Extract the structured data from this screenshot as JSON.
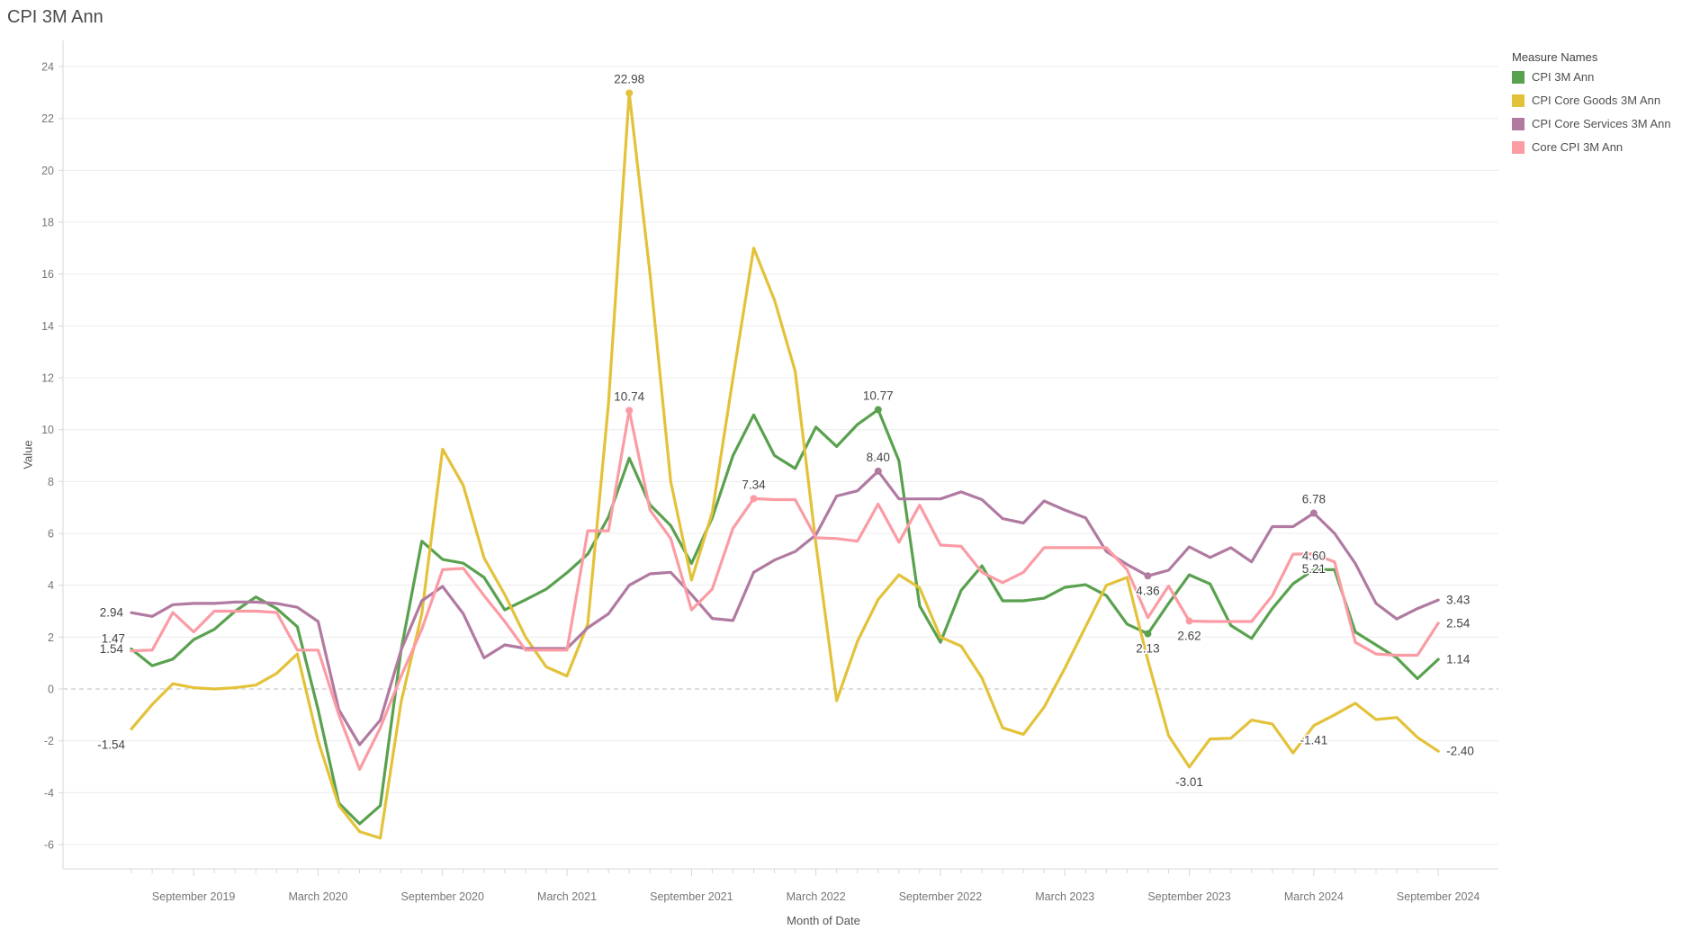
{
  "title": "CPI 3M Ann",
  "y_axis": {
    "title": "Value",
    "min": -6,
    "max": 24,
    "tick_step": 2,
    "ticks": [
      24,
      22,
      20,
      18,
      16,
      14,
      12,
      10,
      8,
      6,
      4,
      2,
      0,
      -2,
      -4,
      -6
    ]
  },
  "x_axis": {
    "title": "Month of Date",
    "tick_labels": [
      {
        "index": 3,
        "label": "September 2019"
      },
      {
        "index": 9,
        "label": "March 2020"
      },
      {
        "index": 15,
        "label": "September 2020"
      },
      {
        "index": 21,
        "label": "March 2021"
      },
      {
        "index": 27,
        "label": "September 2021"
      },
      {
        "index": 33,
        "label": "March 2022"
      },
      {
        "index": 39,
        "label": "September 2022"
      },
      {
        "index": 45,
        "label": "March 2023"
      },
      {
        "index": 51,
        "label": "September 2023"
      },
      {
        "index": 57,
        "label": "March 2024"
      },
      {
        "index": 63,
        "label": "September 2024"
      }
    ]
  },
  "legend": {
    "title": "Measure Names",
    "items": [
      {
        "label": "CPI 3M Ann",
        "color": "#59a14f"
      },
      {
        "label": "CPI Core Goods 3M Ann",
        "color": "#e3c23a"
      },
      {
        "label": "CPI Core Services 3M Ann",
        "color": "#b07aa1"
      },
      {
        "label": "Core CPI 3M Ann",
        "color": "#fb9ca5"
      }
    ]
  },
  "style": {
    "grid_color": "#ececec",
    "zero_line_color": "#bcbcbc",
    "axis_line_color": "#d7d7d7",
    "tick_text_color": "#767676",
    "label_text_color": "#444444",
    "line_width": 3.2
  },
  "chart_data": {
    "type": "line",
    "xlabel": "Month of Date",
    "ylabel": "Value",
    "ylim": [
      -6,
      24
    ],
    "grid": "horizontal",
    "legend_position": "top-right",
    "x": [
      "2019-06",
      "2019-07",
      "2019-08",
      "2019-09",
      "2019-10",
      "2019-11",
      "2019-12",
      "2020-01",
      "2020-02",
      "2020-03",
      "2020-04",
      "2020-05",
      "2020-06",
      "2020-07",
      "2020-08",
      "2020-09",
      "2020-10",
      "2020-11",
      "2020-12",
      "2021-01",
      "2021-02",
      "2021-03",
      "2021-04",
      "2021-05",
      "2021-06",
      "2021-07",
      "2021-08",
      "2021-09",
      "2021-10",
      "2021-11",
      "2021-12",
      "2022-01",
      "2022-02",
      "2022-03",
      "2022-04",
      "2022-05",
      "2022-06",
      "2022-07",
      "2022-08",
      "2022-09",
      "2022-10",
      "2022-11",
      "2022-12",
      "2023-01",
      "2023-02",
      "2023-03",
      "2023-04",
      "2023-05",
      "2023-06",
      "2023-07",
      "2023-08",
      "2023-09",
      "2023-10",
      "2023-11",
      "2023-12",
      "2024-01",
      "2024-02",
      "2024-03",
      "2024-04",
      "2024-05",
      "2024-06",
      "2024-07",
      "2024-08",
      "2024-09"
    ],
    "series": [
      {
        "name": "CPI 3M Ann",
        "color": "#59a14f",
        "values": [
          1.54,
          0.9,
          1.15,
          1.9,
          2.3,
          3.0,
          3.55,
          3.1,
          2.4,
          -0.8,
          -4.4,
          -5.2,
          -4.5,
          1.5,
          5.7,
          5.0,
          4.85,
          4.3,
          3.05,
          3.44,
          3.85,
          4.48,
          5.2,
          6.63,
          8.9,
          7.1,
          6.3,
          4.84,
          6.6,
          9.0,
          10.57,
          9.0,
          8.5,
          10.1,
          9.35,
          10.2,
          10.77,
          8.8,
          3.2,
          1.8,
          3.8,
          4.75,
          3.4,
          3.4,
          3.5,
          3.92,
          4.02,
          3.6,
          2.5,
          2.13,
          3.3,
          4.4,
          4.05,
          2.45,
          1.95,
          3.1,
          4.06,
          4.6,
          4.6,
          2.2,
          1.7,
          1.2,
          0.4,
          1.14
        ],
        "point_labels": [
          {
            "index": 0,
            "text": "1.54",
            "position": "left",
            "dot": false
          },
          {
            "index": 36,
            "text": "10.77",
            "position": "above",
            "dot": true
          },
          {
            "index": 49,
            "text": "2.13",
            "position": "below",
            "dot": true
          },
          {
            "index": 57,
            "text": "4.60",
            "position": "above",
            "dot": false
          },
          {
            "index": 63,
            "text": "1.14",
            "position": "right",
            "dot": false
          }
        ]
      },
      {
        "name": "CPI Core Goods 3M Ann",
        "color": "#e3c23a",
        "values": [
          -1.54,
          -0.6,
          0.2,
          0.05,
          0.0,
          0.05,
          0.15,
          0.6,
          1.35,
          -2.0,
          -4.5,
          -5.5,
          -5.75,
          -0.5,
          2.9,
          9.25,
          7.85,
          5.05,
          3.64,
          2.0,
          0.85,
          0.5,
          2.5,
          11.0,
          22.98,
          16.0,
          8.0,
          4.2,
          6.8,
          12.0,
          17.0,
          15.0,
          12.25,
          5.6,
          -0.45,
          1.84,
          3.45,
          4.4,
          3.9,
          2.0,
          1.65,
          0.43,
          -1.5,
          -1.75,
          -0.7,
          0.8,
          2.4,
          4.0,
          4.3,
          1.1,
          -1.8,
          -3.01,
          -1.93,
          -1.9,
          -1.2,
          -1.35,
          -2.47,
          -1.41,
          -1.0,
          -0.55,
          -1.18,
          -1.1,
          -1.87,
          -2.4
        ],
        "point_labels": [
          {
            "index": 0,
            "text": "-1.54",
            "position": "left-below",
            "dot": false
          },
          {
            "index": 24,
            "text": "22.98",
            "position": "above",
            "dot": true
          },
          {
            "index": 51,
            "text": "-3.01",
            "position": "below",
            "dot": false
          },
          {
            "index": 57,
            "text": "-1.41",
            "position": "below",
            "dot": false
          },
          {
            "index": 63,
            "text": "-2.40",
            "position": "right",
            "dot": false
          }
        ]
      },
      {
        "name": "CPI Core Services 3M Ann",
        "color": "#b07aa1",
        "values": [
          2.94,
          2.8,
          3.25,
          3.3,
          3.3,
          3.35,
          3.35,
          3.3,
          3.15,
          2.6,
          -0.8,
          -2.15,
          -1.2,
          1.5,
          3.4,
          3.95,
          2.9,
          1.2,
          1.7,
          1.56,
          1.56,
          1.56,
          2.36,
          2.9,
          4.0,
          4.44,
          4.5,
          3.64,
          2.72,
          2.64,
          4.5,
          4.97,
          5.3,
          5.94,
          7.44,
          7.64,
          8.4,
          7.33,
          7.33,
          7.33,
          7.6,
          7.3,
          6.57,
          6.4,
          7.25,
          6.9,
          6.6,
          5.3,
          4.8,
          4.36,
          4.58,
          5.48,
          5.07,
          5.45,
          4.9,
          6.26,
          6.26,
          6.78,
          6.0,
          4.84,
          3.3,
          2.7,
          3.1,
          3.43
        ],
        "point_labels": [
          {
            "index": 0,
            "text": "2.94",
            "position": "left",
            "dot": false
          },
          {
            "index": 36,
            "text": "8.40",
            "position": "above",
            "dot": true
          },
          {
            "index": 49,
            "text": "4.36",
            "position": "below",
            "dot": true
          },
          {
            "index": 57,
            "text": "6.78",
            "position": "above",
            "dot": true
          },
          {
            "index": 63,
            "text": "3.43",
            "position": "right",
            "dot": false
          }
        ]
      },
      {
        "name": "Core CPI 3M Ann",
        "color": "#fb9ca5",
        "values": [
          1.47,
          1.5,
          2.95,
          2.2,
          3.0,
          3.0,
          3.0,
          2.95,
          1.5,
          1.5,
          -1.0,
          -3.1,
          -1.5,
          0.5,
          2.3,
          4.6,
          4.65,
          3.6,
          2.6,
          1.5,
          1.5,
          1.5,
          6.1,
          6.1,
          10.74,
          6.9,
          5.8,
          3.05,
          3.85,
          6.2,
          7.34,
          7.3,
          7.3,
          5.83,
          5.8,
          5.7,
          7.13,
          5.66,
          7.09,
          5.55,
          5.5,
          4.5,
          4.1,
          4.5,
          5.45,
          5.45,
          5.45,
          5.45,
          4.6,
          2.75,
          3.97,
          2.62,
          2.6,
          2.6,
          2.6,
          3.6,
          5.2,
          5.21,
          4.9,
          1.8,
          1.35,
          1.3,
          1.3,
          2.54
        ],
        "point_labels": [
          {
            "index": 0,
            "text": "1.47",
            "position": "left-above",
            "dot": false
          },
          {
            "index": 24,
            "text": "10.74",
            "position": "above",
            "dot": true
          },
          {
            "index": 30,
            "text": "7.34",
            "position": "above",
            "dot": true
          },
          {
            "index": 51,
            "text": "2.62",
            "position": "below",
            "dot": true
          },
          {
            "index": 57,
            "text": "5.21",
            "position": "below",
            "dot": false
          },
          {
            "index": 63,
            "text": "2.54",
            "position": "right",
            "dot": false
          }
        ]
      }
    ]
  }
}
